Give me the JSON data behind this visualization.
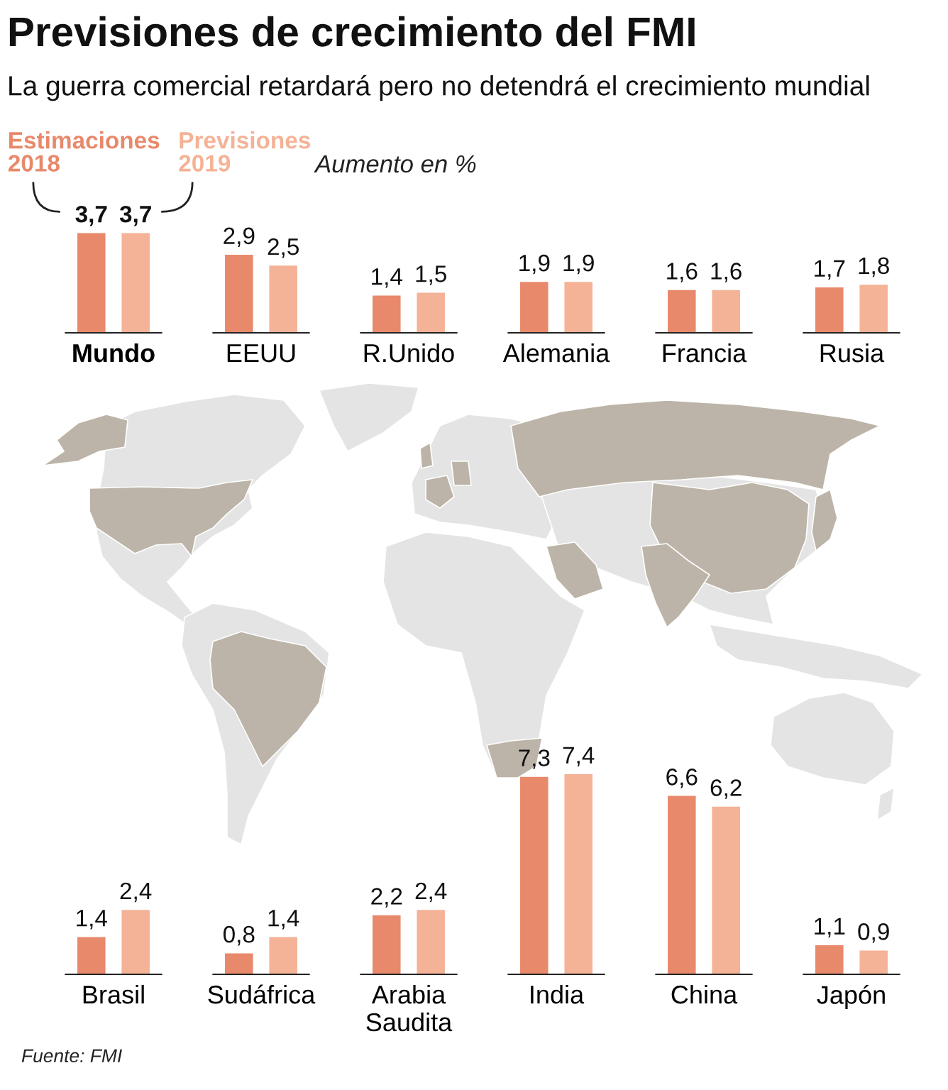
{
  "chart_data": [
    {
      "type": "bar",
      "title": "Previsiones de crecimiento del FMI",
      "subtitle": "La guerra comercial retardará pero no detendrá el crecimiento mundial",
      "annotations": [
        "Aumento en %"
      ],
      "categories": [
        "Mundo",
        "EEUU",
        "R.Unido",
        "Alemania",
        "Francia",
        "Rusia"
      ],
      "series": [
        {
          "name": "Estimaciones\n2018",
          "color": "#e8896b",
          "values": [
            3.7,
            2.9,
            1.4,
            1.9,
            1.6,
            1.7
          ],
          "value_labels": [
            "3,7",
            "2,9",
            "1,4",
            "1,9",
            "1,6",
            "1,7"
          ]
        },
        {
          "name": "Previsiones\n2019",
          "color": "#f4b296",
          "values": [
            3.7,
            2.5,
            1.5,
            1.9,
            1.6,
            1.8
          ],
          "value_labels": [
            "3,7",
            "2,5",
            "1,5",
            "1,9",
            "1,6",
            "1,8"
          ]
        }
      ]
    },
    {
      "type": "bar",
      "annotations": [
        "Fuente: FMI"
      ],
      "categories": [
        "Brasil",
        "Sudáfrica",
        "Arabia\nSaudita",
        "India",
        "China",
        "Japón"
      ],
      "series": [
        {
          "color": "#e8896b",
          "values": [
            1.4,
            0.8,
            2.2,
            7.3,
            6.6,
            1.1
          ],
          "value_labels": [
            "1,4",
            "0,8",
            "2,2",
            "7,3",
            "6,6",
            "1,1"
          ]
        },
        {
          "color": "#f4b296",
          "values": [
            2.4,
            1.4,
            2.4,
            7.4,
            6.2,
            0.9
          ],
          "value_labels": [
            "2,4",
            "1,4",
            "2,4",
            "7,4",
            "6,2",
            "0,9"
          ]
        }
      ]
    }
  ]
}
